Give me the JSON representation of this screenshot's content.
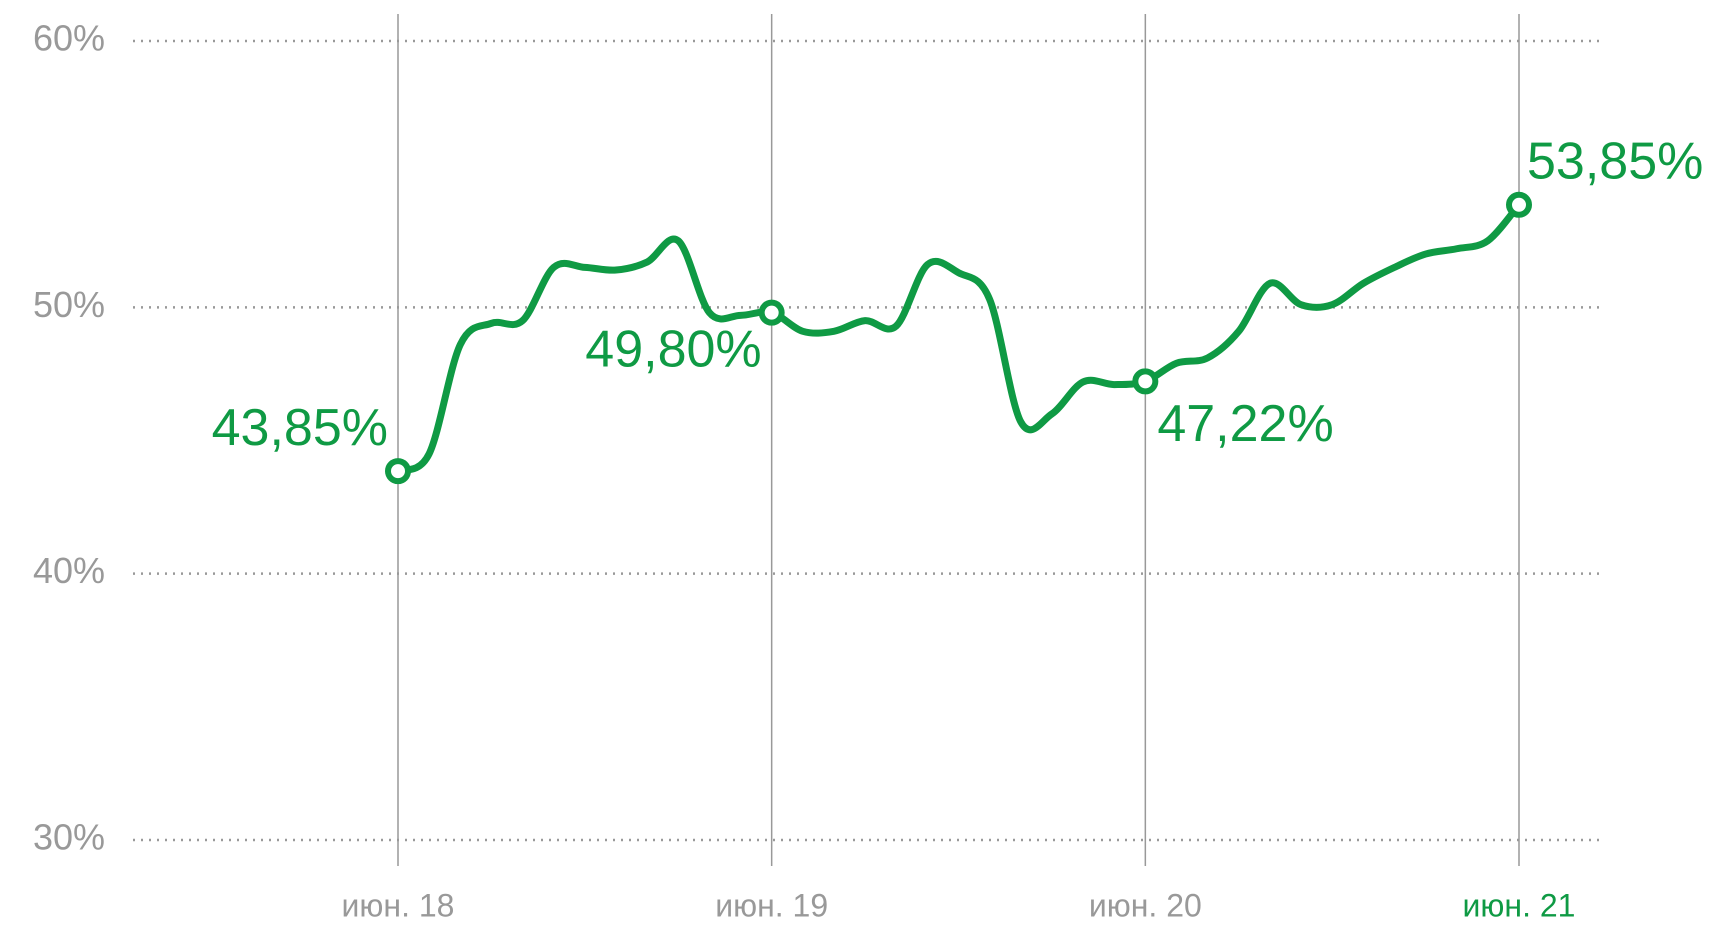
{
  "chart_data": {
    "type": "line",
    "categories": [
      "июн. 18",
      null,
      null,
      null,
      null,
      null,
      null,
      null,
      null,
      null,
      null,
      null,
      "июн. 19",
      null,
      null,
      null,
      null,
      null,
      null,
      null,
      null,
      null,
      null,
      null,
      "июн. 20",
      null,
      null,
      null,
      null,
      null,
      null,
      null,
      null,
      null,
      null,
      null,
      "июн. 21"
    ],
    "series": [
      {
        "color": "#0f9a44",
        "values": [
          43.85,
          44.5,
          48.6,
          49.4,
          49.5,
          51.5,
          51.5,
          51.4,
          51.7,
          52.5,
          49.8,
          49.7,
          49.8,
          49.1,
          49.1,
          49.5,
          49.3,
          51.6,
          51.3,
          50.3,
          45.7,
          46.0,
          47.2,
          47.1,
          47.22,
          47.9,
          48.1,
          49.1,
          50.9,
          50.1,
          50.1,
          50.9,
          51.5,
          52.0,
          52.2,
          52.5,
          53.85
        ],
        "value_labels": [
          "43,85%",
          null,
          null,
          null,
          null,
          null,
          null,
          null,
          null,
          null,
          null,
          null,
          "49,80%",
          null,
          null,
          null,
          null,
          null,
          null,
          null,
          null,
          null,
          null,
          null,
          "47,22%",
          null,
          null,
          null,
          null,
          null,
          null,
          null,
          null,
          null,
          null,
          null,
          "53,85%"
        ]
      }
    ],
    "ylim": [
      30,
      60
    ],
    "yticks": [
      {
        "value": 30,
        "label": "30%"
      },
      {
        "value": 40,
        "label": "40%"
      },
      {
        "value": 50,
        "label": "50%"
      },
      {
        "value": 60,
        "label": "60%"
      }
    ],
    "grid": true
  }
}
